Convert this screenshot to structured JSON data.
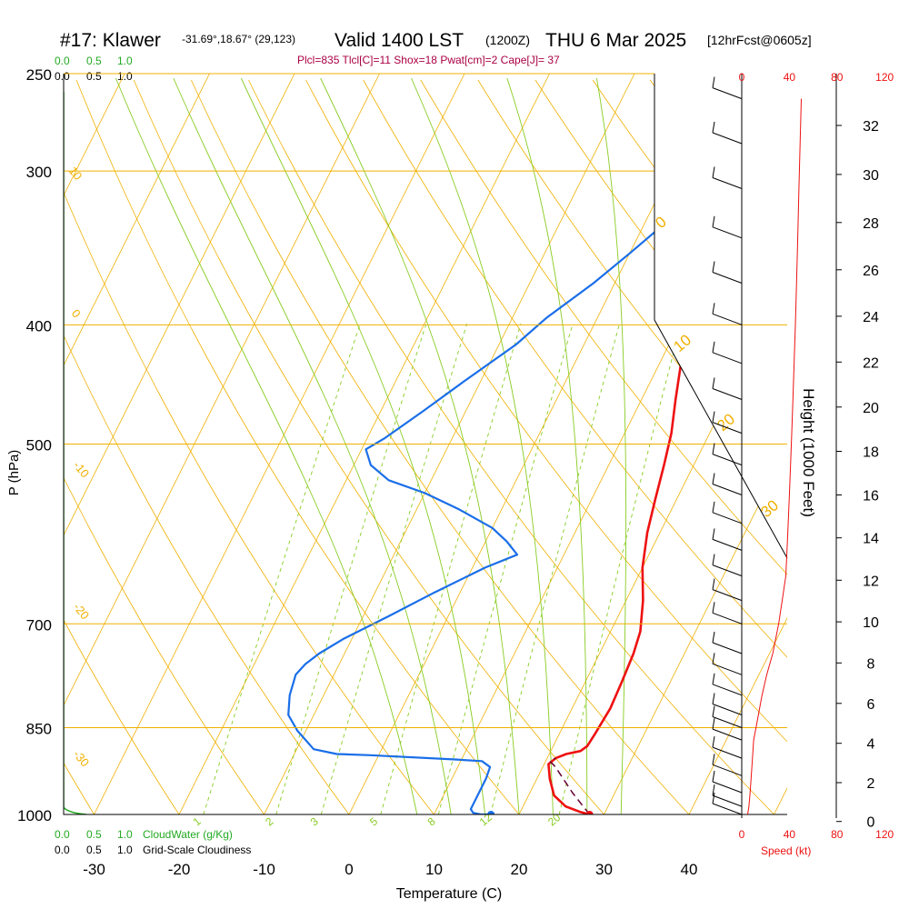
{
  "header": {
    "station": "#17: Klawer",
    "coords": "-31.69°,18.67° (29,123)",
    "valid": "Valid 1400 LST",
    "zulu": "(1200Z)",
    "date": "THU 6 Mar 2025",
    "forecast": "[12hrFcst@0605z]",
    "indices": "Plcl=835 Tlcl[C]=11 Shox=18 Pwat[cm]=2 Cape[J]= 37"
  },
  "colors": {
    "temperature": "#ee1111",
    "dewpoint": "#1a6ee8",
    "isobar": "#f0b000",
    "dry_adiabat": "#f0b000",
    "moist_adiabat": "#88cc22",
    "mixing_ratio": "#88cc22",
    "cloud": "#22aa22",
    "speed_axis": "#ee1111",
    "indices_text": "#aa0044",
    "parcel": "#660033"
  },
  "chart_data": {
    "type": "line",
    "xlabel": "Temperature (C)",
    "ylabel": "P (hPa)",
    "y2label": "Height (1000 Feet)",
    "x_ticks": [
      "-30",
      "-20",
      "-10",
      "0",
      "10",
      "20",
      "30",
      "40"
    ],
    "y_ticks": [
      "250",
      "300",
      "400",
      "500",
      "700",
      "850",
      "1000"
    ],
    "height_ticks": [
      "32",
      "30",
      "28",
      "26",
      "24",
      "22",
      "20",
      "18",
      "16",
      "14",
      "12",
      "10",
      "8",
      "6",
      "4",
      "2",
      "0"
    ],
    "speed_ticks": [
      "0",
      "40",
      "80",
      "120"
    ],
    "speed_label": "Speed (kt)",
    "cloud_ticks": [
      "0.0",
      "0.5",
      "1.0"
    ],
    "cloud_water_label": "CloudWater (g/Kg)",
    "cloudiness_label": "Grid-Scale Cloudiness",
    "theta_labels": [
      "10",
      "0",
      "-10",
      "-20",
      "-30",
      "0",
      "10",
      "20",
      "30"
    ],
    "mixing_ratio_labels": [
      "1",
      "2",
      "3",
      "5",
      "8",
      "12",
      "20"
    ],
    "xlim": [
      -35,
      45
    ],
    "ylim": [
      1000,
      250
    ],
    "series": [
      {
        "name": "Temperature",
        "points": [
          [
            28.3,
            1000
          ],
          [
            27,
            995
          ],
          [
            25,
            985
          ],
          [
            23,
            965
          ],
          [
            21.5,
            935
          ],
          [
            20.5,
            910
          ],
          [
            21,
            900
          ],
          [
            22,
            893
          ],
          [
            23.5,
            888
          ],
          [
            24,
            880
          ],
          [
            24.2,
            860
          ],
          [
            24.5,
            820
          ],
          [
            24.3,
            780
          ],
          [
            24,
            740
          ],
          [
            23.5,
            710
          ],
          [
            22,
            670
          ],
          [
            20,
            630
          ],
          [
            18.5,
            590
          ],
          [
            17.5,
            555
          ],
          [
            16.5,
            520
          ],
          [
            15.5,
            490
          ],
          [
            14,
            460
          ],
          [
            12,
            420
          ],
          [
            10,
            390
          ],
          [
            7.5,
            355
          ],
          [
            5,
            325
          ],
          [
            2,
            295
          ],
          [
            -1,
            270
          ],
          [
            -2.5,
            262
          ]
        ]
      },
      {
        "name": "Dewpoint",
        "points": [
          [
            16.7,
            1000
          ],
          [
            15.5,
            1000
          ],
          [
            14.5,
            997
          ],
          [
            14,
            990
          ],
          [
            14,
            965
          ],
          [
            14,
            935
          ],
          [
            13.8,
            915
          ],
          [
            12.5,
            905
          ],
          [
            9,
            902
          ],
          [
            -1,
            895
          ],
          [
            -5,
            893
          ],
          [
            -8,
            885
          ],
          [
            -11,
            855
          ],
          [
            -13,
            830
          ],
          [
            -14,
            800
          ],
          [
            -14.5,
            770
          ],
          [
            -14,
            755
          ],
          [
            -13,
            740
          ],
          [
            -11,
            720
          ],
          [
            -7,
            690
          ],
          [
            -3,
            660
          ],
          [
            1.5,
            630
          ],
          [
            4.5,
            615
          ],
          [
            2.5,
            600
          ],
          [
            0,
            585
          ],
          [
            -5,
            565
          ],
          [
            -10,
            548
          ],
          [
            -15,
            535
          ],
          [
            -18,
            520
          ],
          [
            -19.5,
            505
          ],
          [
            -18,
            495
          ],
          [
            -15,
            470
          ],
          [
            -12,
            445
          ],
          [
            -8,
            415
          ],
          [
            -6,
            395
          ],
          [
            -2.5,
            370
          ],
          [
            0,
            350
          ],
          [
            2.5,
            330
          ],
          [
            3.5,
            315
          ],
          [
            2.5,
            300
          ],
          [
            1.5,
            285
          ],
          [
            0.5,
            272
          ],
          [
            -2,
            262
          ]
        ]
      },
      {
        "name": "Parcel",
        "points": [
          [
            28.3,
            1000
          ],
          [
            25,
            960
          ],
          [
            21.5,
            915
          ],
          [
            20.5,
            905
          ],
          [
            21,
            900
          ]
        ]
      }
    ],
    "surface_markers": {
      "temperature": 28.3,
      "dewpoint": 16.7
    },
    "wind_speed_kt": [
      [
        1000,
        5
      ],
      [
        985,
        6
      ],
      [
        960,
        7
      ],
      [
        930,
        8
      ],
      [
        900,
        9
      ],
      [
        870,
        10
      ],
      [
        850,
        12
      ],
      [
        830,
        14
      ],
      [
        800,
        17
      ],
      [
        770,
        21
      ],
      [
        740,
        26
      ],
      [
        700,
        31
      ],
      [
        670,
        34
      ],
      [
        640,
        37
      ],
      [
        610,
        38
      ],
      [
        580,
        39
      ],
      [
        550,
        40
      ],
      [
        520,
        41
      ],
      [
        490,
        42
      ],
      [
        460,
        43
      ],
      [
        430,
        44
      ],
      [
        400,
        45
      ],
      [
        370,
        46
      ],
      [
        340,
        47
      ],
      [
        310,
        48
      ],
      [
        285,
        49
      ],
      [
        262,
        50
      ]
    ]
  }
}
